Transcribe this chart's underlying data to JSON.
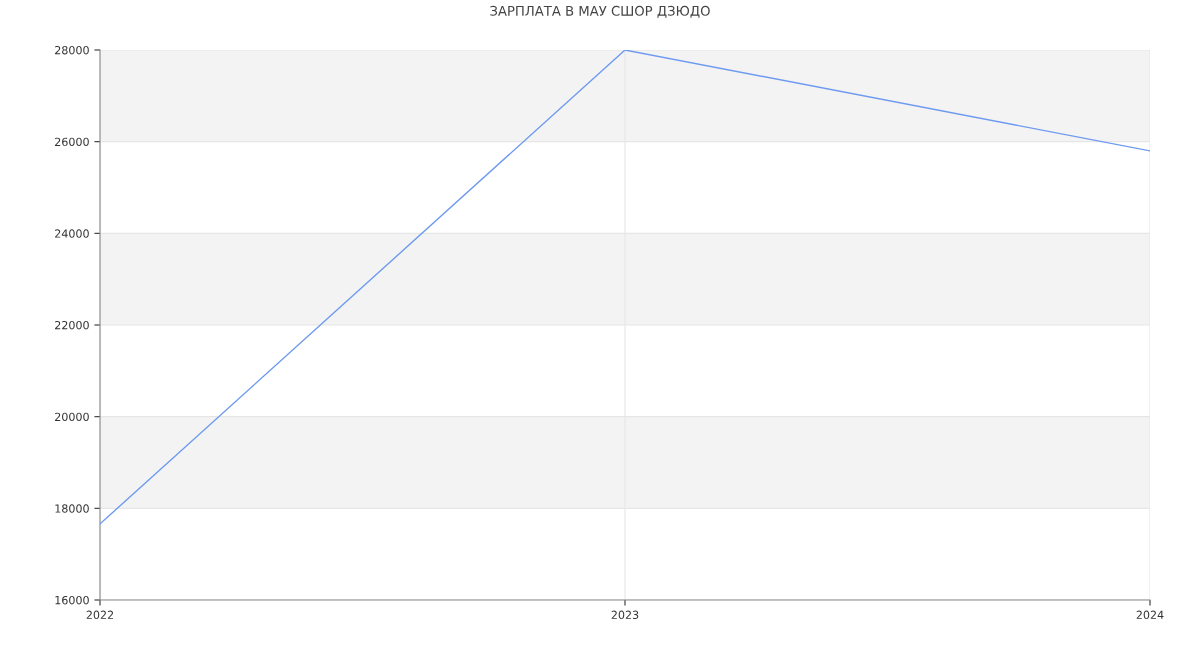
{
  "chart_data": {
    "type": "line",
    "title": "ЗАРПЛАТА В МАУ СШОР ДЗЮДО",
    "x": [
      2022,
      2023,
      2024
    ],
    "series": [
      {
        "color": "#6d9af0",
        "values": [
          17660,
          28000,
          25800
        ]
      }
    ],
    "xlim": [
      2022,
      2024
    ],
    "xticks": [
      2022,
      2023,
      2024
    ],
    "ylim": [
      16000,
      28000
    ],
    "yticks": [
      16000,
      18000,
      20000,
      22000,
      24000,
      26000,
      28000
    ],
    "bands": [
      {
        "axis": "y",
        "from": 18000,
        "to": 20000,
        "color": "#f3f3f3"
      },
      {
        "axis": "y",
        "from": 22000,
        "to": 24000,
        "color": "#f3f3f3"
      },
      {
        "axis": "y",
        "from": 26000,
        "to": 28000,
        "color": "#f3f3f3"
      }
    ],
    "grid": true,
    "legend": false,
    "marker": "none",
    "line_style": "solid"
  }
}
